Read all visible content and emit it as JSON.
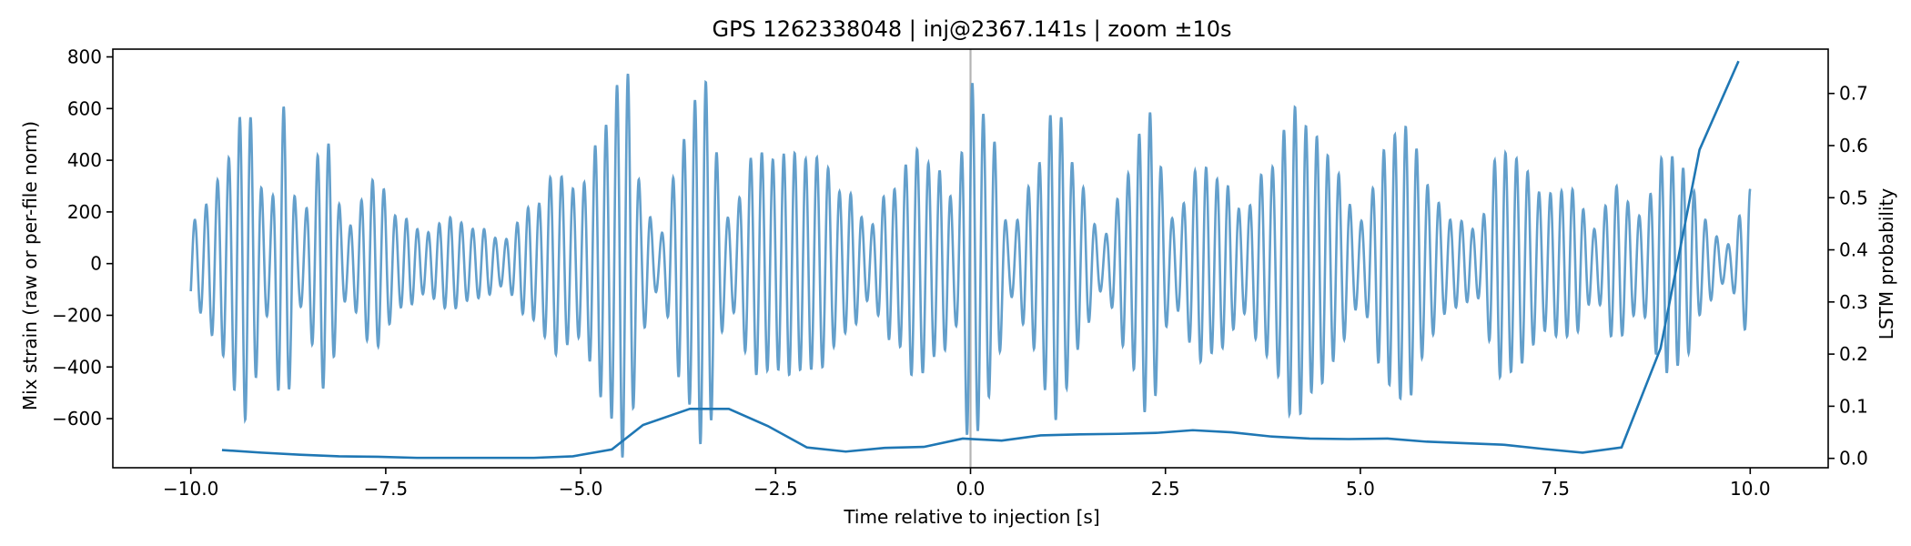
{
  "chart_data": {
    "type": "line",
    "title": "GPS 1262338048 | inj@2367.141s | zoom ±10s",
    "xlabel": "Time relative to injection [s]",
    "ylabel": "Mix strain (raw or per-file norm)",
    "ylabel_right": "LSTM probability",
    "xlim": [
      -11,
      11
    ],
    "ylim": [
      -790,
      830
    ],
    "ylim_right": [
      -0.018,
      0.785
    ],
    "x_ticks": [
      -10.0,
      -7.5,
      -5.0,
      -2.5,
      0.0,
      2.5,
      5.0,
      7.5,
      10.0
    ],
    "x_tick_labels": [
      "−10.0",
      "−7.5",
      "−5.0",
      "−2.5",
      "0.0",
      "2.5",
      "5.0",
      "7.5",
      "10.0"
    ],
    "y_ticks": [
      -600,
      -400,
      -200,
      0,
      200,
      400,
      600,
      800
    ],
    "y_tick_labels": [
      "−600",
      "−400",
      "−200",
      "0",
      "200",
      "400",
      "600",
      "800"
    ],
    "y_ticks_right": [
      0.0,
      0.1,
      0.2,
      0.3,
      0.4,
      0.5,
      0.6,
      0.7
    ],
    "y_tick_labels_right": [
      "0.0",
      "0.1",
      "0.2",
      "0.3",
      "0.4",
      "0.5",
      "0.6",
      "0.7"
    ],
    "injection_marker_x": 0.0,
    "series": [
      {
        "name": "Mix strain",
        "axis": "left",
        "color": "#5b9ac8",
        "description": "oscillating strain signal, approx. 7 Hz carrier with beating envelope",
        "envelope": {
          "t": [
            -10.0,
            -9.6,
            -9.3,
            -9.0,
            -8.8,
            -8.6,
            -8.3,
            -8.0,
            -7.6,
            -7.3,
            -7.0,
            -6.6,
            -6.3,
            -6.0,
            -5.6,
            -5.3,
            -5.0,
            -4.7,
            -4.4,
            -4.2,
            -4.0,
            -3.7,
            -3.4,
            -3.1,
            -2.8,
            -2.5,
            -2.2,
            -1.9,
            -1.6,
            -1.3,
            -1.0,
            -0.7,
            -0.4,
            -0.2,
            0.0,
            0.3,
            0.5,
            0.8,
            1.1,
            1.4,
            1.7,
            2.0,
            2.3,
            2.6,
            2.9,
            3.2,
            3.5,
            3.8,
            4.1,
            4.4,
            4.7,
            5.0,
            5.3,
            5.6,
            5.9,
            6.2,
            6.5,
            6.8,
            7.1,
            7.4,
            7.7,
            8.0,
            8.3,
            8.6,
            8.9,
            9.2,
            9.4,
            9.7,
            10.0
          ],
          "amp": [
            180,
            380,
            520,
            180,
            680,
            200,
            450,
            120,
            380,
            180,
            100,
            180,
            160,
            80,
            200,
            420,
            300,
            450,
            720,
            300,
            120,
            420,
            620,
            200,
            460,
            350,
            380,
            480,
            280,
            120,
            280,
            540,
            350,
            200,
            620,
            540,
            150,
            300,
            520,
            350,
            120,
            300,
            520,
            200,
            400,
            280,
            180,
            430,
            600,
            420,
            350,
            200,
            420,
            450,
            300,
            200,
            120,
            380,
            420,
            300,
            250,
            120,
            350,
            200,
            360,
            330,
            200,
            80,
            250
          ]
        }
      },
      {
        "name": "LSTM probability",
        "axis": "right",
        "color": "#1f77b4",
        "x": [
          -9.6,
          -9.1,
          -8.6,
          -8.1,
          -7.6,
          -7.1,
          -6.6,
          -6.1,
          -5.6,
          -5.1,
          -4.6,
          -4.2,
          -3.6,
          -3.1,
          -2.6,
          -2.1,
          -1.6,
          -1.1,
          -0.6,
          -0.1,
          0.4,
          0.9,
          1.4,
          1.9,
          2.4,
          2.85,
          3.35,
          3.85,
          4.35,
          4.85,
          5.35,
          5.85,
          6.35,
          6.85,
          7.35,
          7.85,
          8.35,
          8.85,
          9.35,
          9.85
        ],
        "y": [
          0.016,
          0.011,
          0.007,
          0.004,
          0.003,
          0.001,
          0.001,
          0.001,
          0.001,
          0.004,
          0.017,
          0.064,
          0.095,
          0.095,
          0.062,
          0.021,
          0.013,
          0.02,
          0.022,
          0.038,
          0.034,
          0.044,
          0.046,
          0.047,
          0.049,
          0.054,
          0.05,
          0.042,
          0.038,
          0.037,
          0.038,
          0.032,
          0.029,
          0.026,
          0.018,
          0.011,
          0.021,
          0.211,
          0.592,
          0.762
        ]
      }
    ]
  }
}
